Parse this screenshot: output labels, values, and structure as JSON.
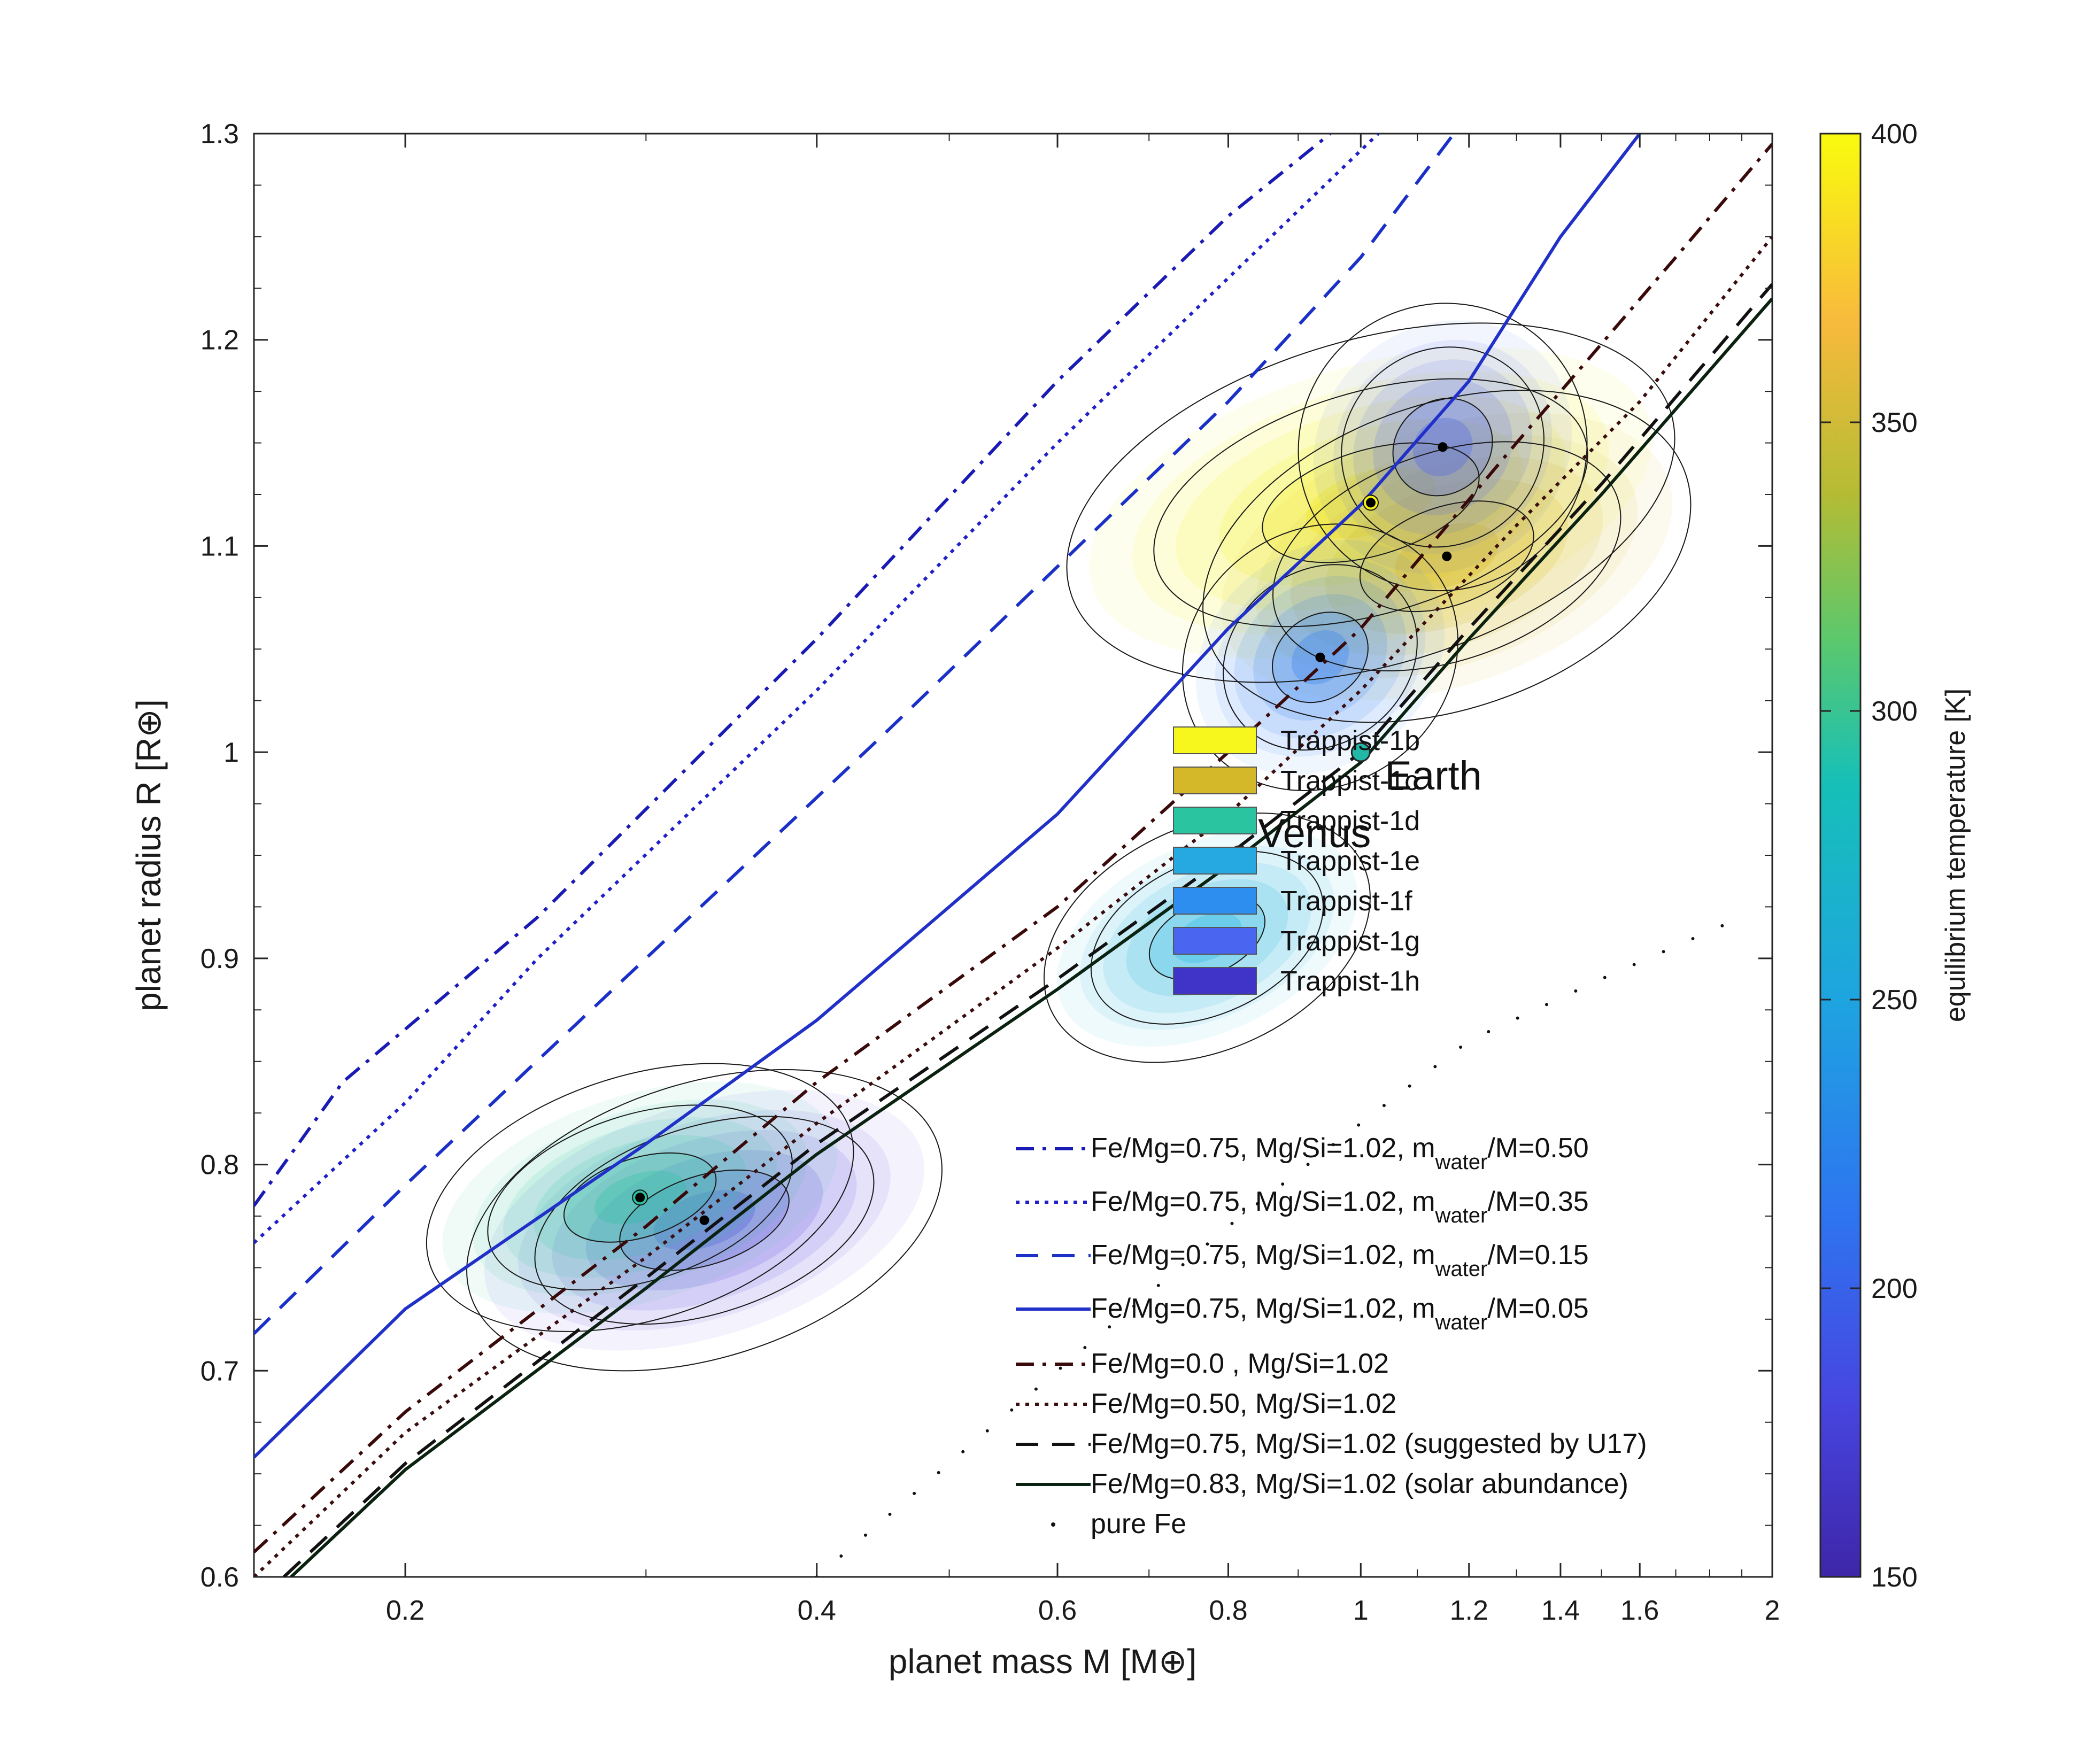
{
  "chart_data": {
    "type": "line",
    "xlabel": "planet mass M [M⊕]",
    "ylabel": "planet radius R [R⊕]",
    "xscale": "log",
    "xlim": [
      0.155,
      2.0
    ],
    "ylim": [
      0.6,
      1.3
    ],
    "xticks": [
      0.2,
      0.4,
      0.6,
      0.8,
      1,
      1.2,
      1.4,
      1.6,
      2
    ],
    "xtick_labels": [
      "0.2",
      "0.4",
      "0.6",
      "0.8",
      "1",
      "1.2",
      "1.4",
      "1.6",
      "2"
    ],
    "yticks": [
      0.6,
      0.7,
      0.8,
      0.9,
      1.0,
      1.1,
      1.2,
      1.3
    ],
    "ytick_labels": [
      "0.6",
      "0.7",
      "0.8",
      "0.9",
      "1",
      "1.1",
      "1.2",
      "1.3"
    ],
    "colorbar": {
      "label": "equilibrium temperature [K]",
      "range": [
        150,
        400
      ],
      "ticks": [
        150,
        200,
        250,
        300,
        350,
        400
      ],
      "tick_labels": [
        "150",
        "200",
        "250",
        "300",
        "350",
        "400"
      ]
    },
    "planet_legend": [
      "Trappist-1b",
      "Trappist-1c",
      "Trappist-1d",
      "Trappist-1e",
      "Trappist-1f",
      "Trappist-1g",
      "Trappist-1h"
    ],
    "planet_legend_colors": [
      "#f7f71e",
      "#d4b82a",
      "#2bc4a0",
      "#26a8e0",
      "#2d8ef0",
      "#4a66f0",
      "#4034c8"
    ],
    "planets": [
      {
        "name": "Trappist-1b",
        "mass": 1.017,
        "radius": 1.121,
        "color": "#f5f010",
        "mass_sd": 0.2,
        "radius_sd": 0.032,
        "corr": 0.4
      },
      {
        "name": "Trappist-1c",
        "mass": 1.156,
        "radius": 1.095,
        "color": "#d6b820",
        "mass_sd": 0.18,
        "radius_sd": 0.03,
        "corr": 0.4
      },
      {
        "name": "Trappist-1d",
        "mass": 0.297,
        "radius": 0.784,
        "color": "#2bc4a0",
        "mass_sd": 0.04,
        "radius_sd": 0.024,
        "corr": 0.4
      },
      {
        "name": "Trappist-1e",
        "mass": 0.772,
        "radius": 0.91,
        "color": "#22b4e0",
        "mass_sd": 0.08,
        "radius_sd": 0.022,
        "corr": 0.5
      },
      {
        "name": "Trappist-1f",
        "mass": 0.934,
        "radius": 1.046,
        "color": "#2d7ff0",
        "mass_sd": 0.08,
        "radius_sd": 0.025,
        "corr": 0.6
      },
      {
        "name": "Trappist-1g",
        "mass": 1.148,
        "radius": 1.148,
        "color": "#4a60f0",
        "mass_sd": 0.1,
        "radius_sd": 0.028,
        "corr": 0.6
      },
      {
        "name": "Trappist-1h",
        "mass": 0.331,
        "radius": 0.773,
        "color": "#5a46e0",
        "mass_sd": 0.05,
        "radius_sd": 0.027,
        "corr": 0.4
      }
    ],
    "references": [
      {
        "name": "Earth",
        "label": "Earth",
        "mass": 1.0,
        "radius": 1.0,
        "color": "#22b8a8"
      },
      {
        "name": "Venus",
        "label": "Venus",
        "mass": 0.815,
        "radius": 0.95,
        "color": "#a8b830"
      }
    ],
    "series": [
      {
        "name": "Fe/Mg=0.75, Mg/Si=1.02, m_water/M=0.50",
        "legend_main": "Fe/Mg=0.75, Mg/Si=1.02, m",
        "legend_sub": "water",
        "legend_tail": "/M=0.50",
        "color": "#1a1ab4",
        "style": "dashdot",
        "x": [
          0.155,
          0.18,
          0.25,
          0.4,
          0.6,
          0.8,
          0.95
        ],
        "y": [
          0.78,
          0.84,
          0.92,
          1.055,
          1.18,
          1.26,
          1.3
        ]
      },
      {
        "name": "Fe/Mg=0.75, Mg/Si=1.02, m_water/M=0.35",
        "legend_main": "Fe/Mg=0.75, Mg/Si=1.02, m",
        "legend_sub": "water",
        "legend_tail": "/M=0.35",
        "color": "#2020c8",
        "style": "dotted",
        "x": [
          0.155,
          0.2,
          0.25,
          0.4,
          0.6,
          0.8,
          1.03
        ],
        "y": [
          0.762,
          0.83,
          0.9,
          1.03,
          1.15,
          1.23,
          1.3
        ]
      },
      {
        "name": "Fe/Mg=0.75, Mg/Si=1.02, m_water/M=0.15",
        "legend_main": "Fe/Mg=0.75, Mg/Si=1.02, m",
        "legend_sub": "water",
        "legend_tail": "/M=0.15",
        "color": "#1a30c8",
        "style": "dashed",
        "x": [
          0.155,
          0.2,
          0.3,
          0.45,
          0.6,
          0.8,
          1.0,
          1.17
        ],
        "y": [
          0.718,
          0.79,
          0.9,
          1.01,
          1.09,
          1.17,
          1.24,
          1.3
        ]
      },
      {
        "name": "Fe/Mg=0.75, Mg/Si=1.02, m_water/M=0.05",
        "legend_main": "Fe/Mg=0.75, Mg/Si=1.02, m",
        "legend_sub": "water",
        "legend_tail": "/M=0.05",
        "color": "#2030c8",
        "style": "solid",
        "x": [
          0.155,
          0.2,
          0.3,
          0.4,
          0.6,
          0.8,
          1.0,
          1.2,
          1.4,
          1.6
        ],
        "y": [
          0.658,
          0.73,
          0.81,
          0.87,
          0.97,
          1.06,
          1.12,
          1.18,
          1.25,
          1.3
        ]
      },
      {
        "name": "Fe/Mg=0.0 , Mg/Si=1.02",
        "legend_main": "Fe/Mg=0.0 , Mg/Si=1.02",
        "color": "#3a0a0a",
        "style": "dashdot",
        "x": [
          0.155,
          0.2,
          0.3,
          0.4,
          0.6,
          0.8,
          1.0,
          1.3,
          1.7,
          2.0
        ],
        "y": [
          0.612,
          0.68,
          0.77,
          0.84,
          0.925,
          1.0,
          1.06,
          1.15,
          1.24,
          1.295
        ]
      },
      {
        "name": "Fe/Mg=0.50, Mg/Si=1.02",
        "legend_main": "Fe/Mg=0.50, Mg/Si=1.02",
        "color": "#3a0e0e",
        "style": "dotted",
        "x": [
          0.155,
          0.2,
          0.3,
          0.4,
          0.6,
          0.8,
          1.0,
          1.3,
          1.6,
          2.0
        ],
        "y": [
          0.6,
          0.67,
          0.755,
          0.82,
          0.905,
          0.97,
          1.03,
          1.11,
          1.17,
          1.25
        ]
      },
      {
        "name": "Fe/Mg=0.75, Mg/Si=1.02 (suggested by U17)",
        "legend_main": "Fe/Mg=0.75, Mg/Si=1.02 (suggested by U17)",
        "color": "#111111",
        "style": "dashed",
        "x": [
          0.163,
          0.2,
          0.3,
          0.4,
          0.6,
          0.8,
          1.0,
          1.2,
          1.5,
          2.0
        ],
        "y": [
          0.6,
          0.655,
          0.745,
          0.81,
          0.89,
          0.95,
          1.0,
          1.06,
          1.13,
          1.227
        ]
      },
      {
        "name": "Fe/Mg=0.83, Mg/Si=1.02 (solar abundance)",
        "legend_main": "Fe/Mg=0.83, Mg/Si=1.02 (solar abundance)",
        "color": "#0a2210",
        "style": "solid",
        "x": [
          0.165,
          0.2,
          0.3,
          0.4,
          0.6,
          0.8,
          1.0,
          1.2,
          1.5,
          2.0
        ],
        "y": [
          0.6,
          0.652,
          0.74,
          0.805,
          0.885,
          0.945,
          0.995,
          1.055,
          1.125,
          1.22
        ]
      },
      {
        "name": "pure Fe",
        "legend_main": "pure Fe",
        "color": "#111111",
        "style": "sparse-dots",
        "x": [
          0.4,
          0.6,
          0.8,
          1.0,
          1.2,
          1.5,
          1.9
        ],
        "y": [
          0.6,
          0.7,
          0.77,
          0.82,
          0.86,
          0.89,
          0.92
        ]
      }
    ],
    "annotations": [
      "Earth",
      "Venus"
    ]
  }
}
